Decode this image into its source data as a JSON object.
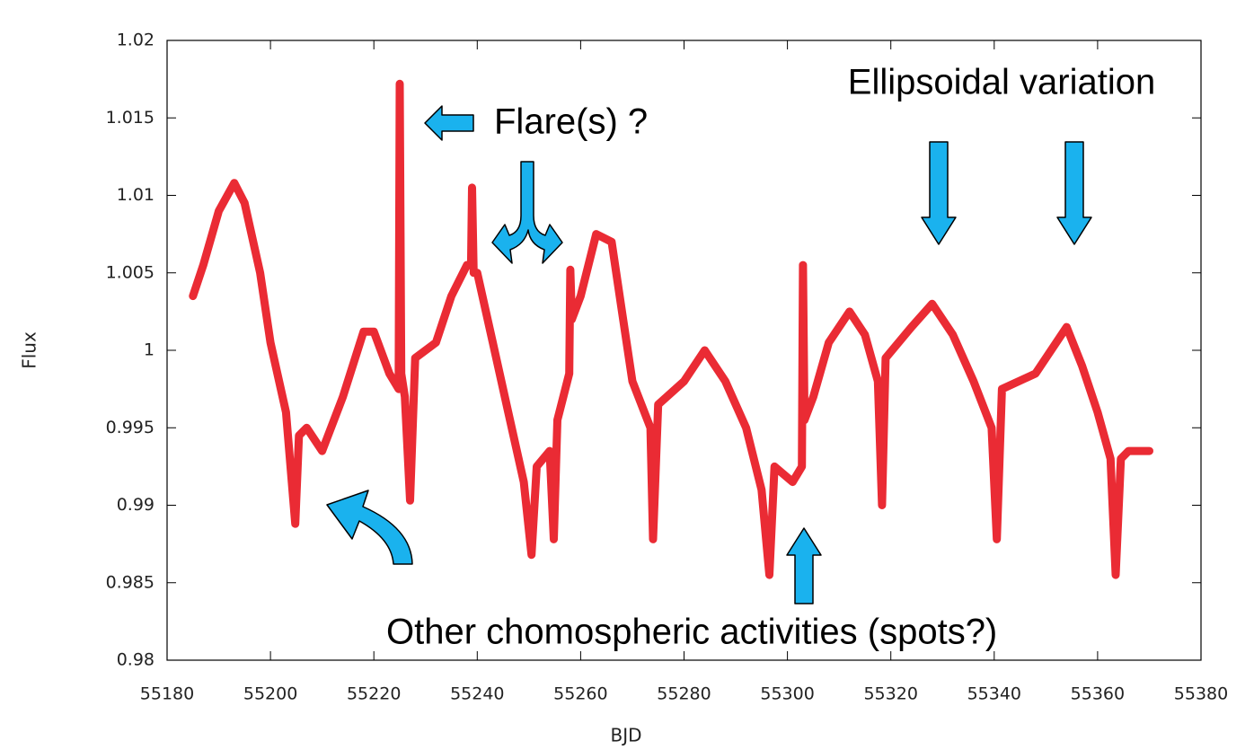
{
  "chart_data": {
    "type": "line",
    "x_label": "BJD",
    "y_label": "Flux",
    "annotations": [
      "Ellipsoidal variation",
      "Flare(s) ?",
      "Other chomospheric activities (spots?)"
    ],
    "xlim": [
      55180,
      55380
    ],
    "xticks": [
      55180,
      55200,
      55220,
      55240,
      55260,
      55280,
      55300,
      55320,
      55340,
      55360,
      55380
    ],
    "ylim": [
      0.98,
      1.02
    ],
    "yticks": [
      0.98,
      0.985,
      0.99,
      0.995,
      1,
      1.005,
      1.01,
      1.015,
      1.02
    ],
    "grid": false,
    "x": [
      55185,
      55187,
      55190,
      55193,
      55195,
      55198,
      55200,
      55203,
      55204.8,
      55205.5,
      55207,
      55210,
      55214,
      55218,
      55220,
      55223,
      55224.8,
      55225,
      55225.3,
      55226,
      55227,
      55228,
      55232,
      55235,
      55238,
      55238.8,
      55239,
      55239.3,
      55240,
      55243,
      55246,
      55249,
      55250.5,
      55251.5,
      55254,
      55254.8,
      55255.5,
      55257.8,
      55258,
      55258.3,
      55260,
      55263,
      55266,
      55268,
      55270,
      55273.5,
      55274,
      55275,
      55280,
      55284,
      55288,
      55292,
      55295,
      55296.5,
      55297.5,
      55301,
      55302.8,
      55303,
      55303.3,
      55305,
      55308,
      55312,
      55315,
      55317.5,
      55318.3,
      55319,
      55324,
      55328,
      55332,
      55336,
      55339.5,
      55340.5,
      55341.5,
      55348,
      55354,
      55357,
      55360,
      55362.5,
      55363.5,
      55364.5,
      55366,
      55370
    ],
    "series": [
      {
        "color": "#e8141e",
        "values": [
          1.0035,
          1.0055,
          1.009,
          1.0108,
          1.0095,
          1.005,
          1.0005,
          0.996,
          0.9888,
          0.9945,
          0.995,
          0.9935,
          0.997,
          1.0012,
          1.0012,
          0.9985,
          0.9975,
          1.0172,
          0.9985,
          0.997,
          0.9903,
          0.9995,
          1.0005,
          1.0035,
          1.0055,
          1.0055,
          1.0105,
          1.005,
          1.005,
          1.0005,
          0.996,
          0.9915,
          0.9868,
          0.9925,
          0.9935,
          0.9878,
          0.9955,
          0.9985,
          1.0052,
          1.002,
          1.0035,
          1.0075,
          1.007,
          1.0025,
          0.998,
          0.995,
          0.9878,
          0.9965,
          0.998,
          1.0,
          0.998,
          0.995,
          0.991,
          0.9855,
          0.9925,
          0.9915,
          0.9925,
          1.0055,
          0.9955,
          0.997,
          1.0005,
          1.0025,
          1.001,
          0.998,
          0.99,
          0.9995,
          1.0015,
          1.003,
          1.001,
          0.998,
          0.995,
          0.9878,
          0.9975,
          0.9985,
          1.0015,
          0.999,
          0.996,
          0.993,
          0.9855,
          0.993,
          0.9935,
          0.9935
        ]
      }
    ]
  }
}
